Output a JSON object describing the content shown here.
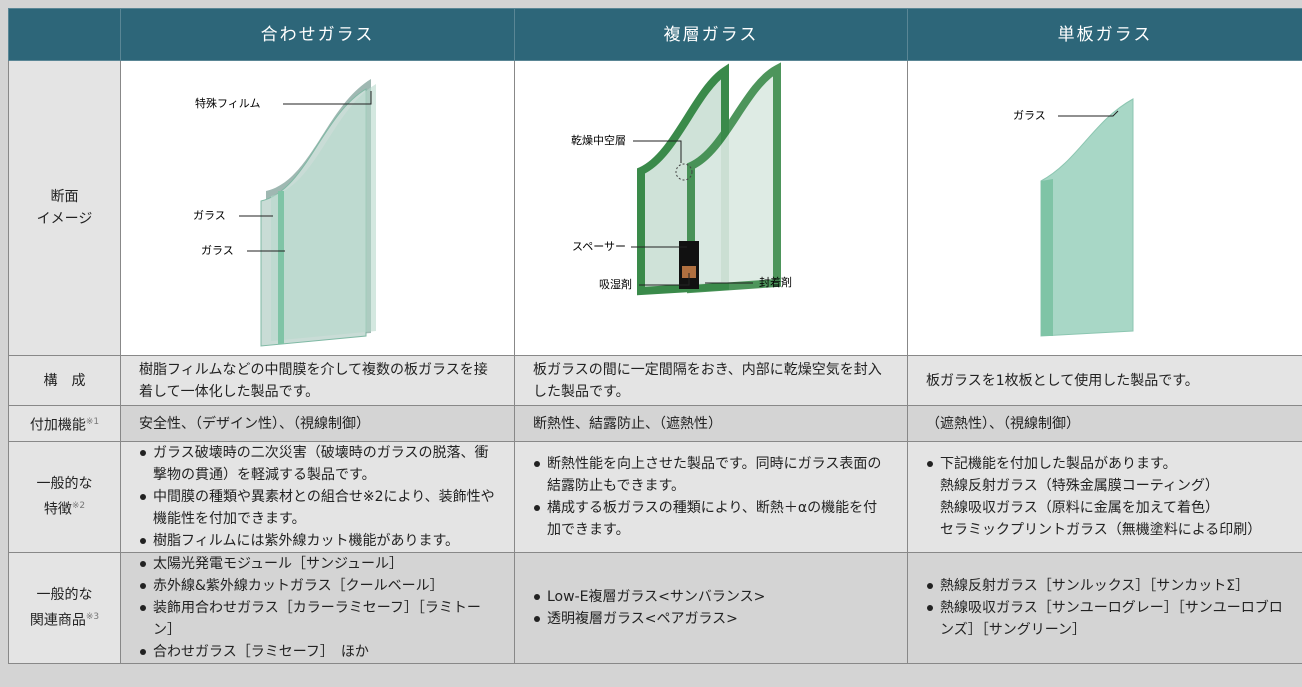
{
  "header": {
    "columns": [
      "合わせガラス",
      "複層ガラス",
      "単板ガラス"
    ]
  },
  "image_row": {
    "label_lines": [
      "断面",
      "イメージ"
    ],
    "diagrams": [
      {
        "labels": [
          "特殊フィルム",
          "ガラス",
          "ガラス"
        ]
      },
      {
        "labels": [
          "乾燥中空層",
          "スペーサー",
          "吸湿剤",
          "封着剤"
        ]
      },
      {
        "labels": [
          "ガラス"
        ]
      }
    ]
  },
  "rows": [
    {
      "label_lines": [
        "構　成"
      ],
      "cells": [
        {
          "text": "樹脂フィルムなどの中間膜を介して複数の板ガラスを接着して一体化した製品です。"
        },
        {
          "text": "板ガラスの間に一定間隔をおき、内部に乾燥空気を封入した製品です。"
        },
        {
          "text": "板ガラスを1枚板として使用した製品です。"
        }
      ]
    },
    {
      "label_lines": [
        "付加機能"
      ],
      "note": "※1",
      "cells": [
        {
          "text": "安全性、（デザイン性）、（視線制御）"
        },
        {
          "text": "断熱性、結露防止、（遮熱性）"
        },
        {
          "text": "（遮熱性）、（視線制御）"
        }
      ]
    },
    {
      "label_lines": [
        "一般的な",
        "特徴"
      ],
      "note": "※2",
      "cells": [
        {
          "items": [
            "ガラス破壊時の二次災害（破壊時のガラスの脱落、衝撃物の貫通）を軽減する製品です。",
            "中間膜の種類や異素材との組合せ※2により、装飾性や機能性を付加できます。",
            "樹脂フィルムには紫外線カット機能があります。"
          ]
        },
        {
          "items": [
            "断熱性能を向上させた製品です。同時にガラス表面の結露防止もできます。",
            "構成する板ガラスの種類により、断熱＋αの機能を付加できます。"
          ]
        },
        {
          "items": [
            "下記機能を付加した製品があります。"
          ],
          "sublines": [
            "熱線反射ガラス（特殊金属膜コーティング）",
            "熱線吸収ガラス（原料に金属を加えて着色）",
            "セラミックプリントガラス（無機塗料による印刷）"
          ]
        }
      ]
    },
    {
      "label_lines": [
        "一般的な",
        "関連商品"
      ],
      "note": "※3",
      "cells": [
        {
          "items": [
            "太陽光発電モジュール［サンジュール］",
            "赤外線&紫外線カットガラス［クールベール］",
            "装飾用合わせガラス［カラーラミセーフ］［ラミトーン］",
            "合わせガラス［ラミセーフ］　ほか"
          ]
        },
        {
          "items": [
            "Low-E複層ガラス<サンバランス>",
            "透明複層ガラス<ペアガラス>"
          ]
        },
        {
          "items": [
            "熱線反射ガラス［サンルックス］［サンカットΣ］",
            "熱線吸収ガラス［サンユーログレー］［サンユーロブロンズ］［サングリーン］"
          ]
        }
      ]
    }
  ]
}
